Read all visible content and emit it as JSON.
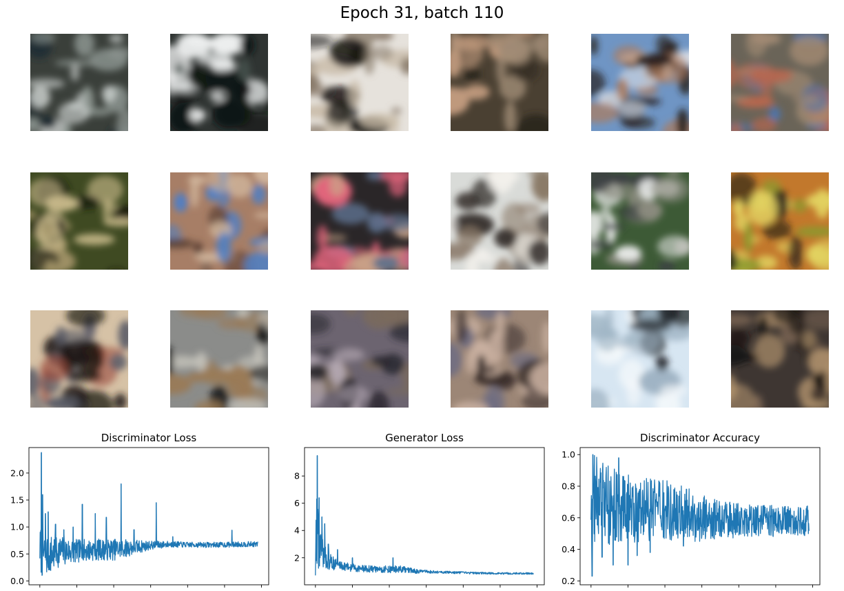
{
  "suptitle": "Epoch 31, batch 110",
  "samples": [
    {
      "colors": [
        "#3a3f3a",
        "#cfd4d2",
        "#1c2a33",
        "#8d9691"
      ]
    },
    {
      "colors": [
        "#2f3432",
        "#eef0f0",
        "#4d5a55",
        "#101513"
      ]
    },
    {
      "colors": [
        "#e6e2dc",
        "#8a7c6c",
        "#141312",
        "#c7b9a5"
      ]
    },
    {
      "colors": [
        "#4a4032",
        "#9e8a74",
        "#2a251e",
        "#c09a7d"
      ]
    },
    {
      "colors": [
        "#6f95c4",
        "#2a2220",
        "#b07a55",
        "#d6dce6"
      ]
    },
    {
      "colors": [
        "#6a6458",
        "#b8674f",
        "#4f74a8",
        "#a58d75"
      ]
    },
    {
      "colors": [
        "#3f4a22",
        "#9e9064",
        "#1b1d12",
        "#c8b98a"
      ]
    },
    {
      "colors": [
        "#a77e66",
        "#5a3f33",
        "#4f7fc4",
        "#d2b79e"
      ]
    },
    {
      "colors": [
        "#2a2628",
        "#c9a387",
        "#e3647c",
        "#5c6f8b"
      ]
    },
    {
      "colors": [
        "#d9dbd8",
        "#3a3532",
        "#8a7968",
        "#f3f1ec"
      ]
    },
    {
      "colors": [
        "#3d5a36",
        "#e8eae8",
        "#3c4043",
        "#8c8c80"
      ]
    },
    {
      "colors": [
        "#c2782c",
        "#1e1c18",
        "#8a9a2c",
        "#e2d260"
      ]
    },
    {
      "colors": [
        "#d6c2a6",
        "#1c1714",
        "#9a4a3a",
        "#585a66"
      ]
    },
    {
      "colors": [
        "#8b8c8a",
        "#141414",
        "#c5c3bb",
        "#9a7a56"
      ]
    },
    {
      "colors": [
        "#6c6470",
        "#2a2830",
        "#b5a9b4",
        "#7a6a5c"
      ]
    },
    {
      "colors": [
        "#9c8676",
        "#3a2e2c",
        "#c9b0a0",
        "#6a6a82"
      ]
    },
    {
      "colors": [
        "#d7e6f2",
        "#1c2024",
        "#9fb4c4",
        "#f4f8fb"
      ]
    },
    {
      "colors": [
        "#3e3632",
        "#1a1614",
        "#b3946e",
        "#7a6452"
      ]
    }
  ],
  "chart_data": [
    {
      "type": "line",
      "title": "Discriminator Loss",
      "xlim": [
        0,
        11800
      ],
      "ylim": [
        0,
        2.4
      ],
      "xticks": [
        "0",
        "2000",
        "4000",
        "6000",
        "8000",
        "10000",
        "12000"
      ],
      "yticks": [
        "0.0",
        "0.5",
        "1.0",
        "1.5",
        "2.0"
      ],
      "color": "#1f77b4",
      "series": [
        {
          "x": [
            0,
            100,
            200,
            400,
            700,
            1000,
            1500,
            2000,
            3000,
            4000,
            5000,
            6000,
            7000,
            8000,
            9000,
            10000,
            11000,
            11800
          ],
          "y": [
            0.6,
            0.55,
            0.5,
            0.5,
            0.5,
            0.55,
            0.55,
            0.55,
            0.58,
            0.58,
            0.62,
            0.66,
            0.68,
            0.67,
            0.67,
            0.67,
            0.68,
            0.68
          ],
          "spread": [
            0.35,
            0.5,
            0.45,
            0.4,
            0.35,
            0.3,
            0.25,
            0.22,
            0.2,
            0.2,
            0.15,
            0.08,
            0.06,
            0.05,
            0.05,
            0.05,
            0.05,
            0.05
          ]
        }
      ],
      "spikes": [
        [
          80,
          2.38
        ],
        [
          150,
          1.6
        ],
        [
          300,
          1.25
        ],
        [
          450,
          1.28
        ],
        [
          850,
          1.05
        ],
        [
          1300,
          0.95
        ],
        [
          1800,
          1.0
        ],
        [
          2300,
          1.42
        ],
        [
          3000,
          1.25
        ],
        [
          3600,
          1.18
        ],
        [
          4400,
          1.8
        ],
        [
          5100,
          0.95
        ],
        [
          6300,
          1.45
        ],
        [
          7200,
          0.82
        ],
        [
          10400,
          0.94
        ]
      ]
    },
    {
      "type": "line",
      "title": "Generator Loss",
      "xlim": [
        0,
        11800
      ],
      "ylim": [
        0.3,
        9.8
      ],
      "xticks": [
        "0",
        "2000",
        "4000",
        "6000",
        "8000",
        "10000",
        "12000"
      ],
      "yticks": [
        "2",
        "4",
        "6",
        "8"
      ],
      "color": "#1f77b4",
      "series": [
        {
          "x": [
            0,
            60,
            150,
            300,
            500,
            800,
            1200,
            1800,
            2500,
            3500,
            4500,
            5500,
            6500,
            8000,
            9500,
            11000,
            11800
          ],
          "y": [
            1.0,
            5.0,
            3.5,
            2.6,
            2.0,
            1.7,
            1.5,
            1.3,
            1.2,
            1.15,
            1.15,
            1.0,
            0.95,
            0.9,
            0.85,
            0.85,
            0.85
          ],
          "spread": [
            0.6,
            3.5,
            2.5,
            1.2,
            0.9,
            0.6,
            0.4,
            0.3,
            0.25,
            0.25,
            0.3,
            0.15,
            0.1,
            0.08,
            0.07,
            0.07,
            0.07
          ]
        }
      ],
      "spikes": [
        [
          100,
          9.5
        ],
        [
          200,
          6.4
        ],
        [
          350,
          5.0
        ],
        [
          500,
          4.5
        ],
        [
          700,
          3.0
        ],
        [
          1200,
          2.6
        ],
        [
          2000,
          2.0
        ],
        [
          4200,
          2.0
        ]
      ]
    },
    {
      "type": "line",
      "title": "Discriminator Accuracy",
      "xlim": [
        0,
        11800
      ],
      "ylim": [
        0.2,
        1.02
      ],
      "xticks": [
        "0",
        "2000",
        "4000",
        "6000",
        "8000",
        "10000",
        "12000"
      ],
      "yticks": [
        "0.2",
        "0.4",
        "0.6",
        "0.8",
        "1.0"
      ],
      "color": "#1f77b4",
      "series": [
        {
          "x": [
            0,
            200,
            1000,
            2000,
            3000,
            4000,
            5000,
            6000,
            7000,
            8000,
            9000,
            10000,
            11000,
            11800
          ],
          "y": [
            0.72,
            0.72,
            0.68,
            0.66,
            0.65,
            0.64,
            0.62,
            0.6,
            0.59,
            0.58,
            0.58,
            0.58,
            0.58,
            0.58
          ],
          "spread": [
            0.28,
            0.28,
            0.25,
            0.22,
            0.2,
            0.2,
            0.18,
            0.15,
            0.12,
            0.11,
            0.1,
            0.1,
            0.1,
            0.1
          ]
        }
      ],
      "spikes": [
        [
          60,
          0.23
        ],
        [
          100,
          1.0
        ],
        [
          600,
          0.35
        ],
        [
          1200,
          0.3
        ],
        [
          1500,
          0.98
        ],
        [
          2000,
          0.3
        ],
        [
          2500,
          0.36
        ],
        [
          3200,
          0.38
        ],
        [
          5000,
          0.42
        ]
      ]
    }
  ]
}
